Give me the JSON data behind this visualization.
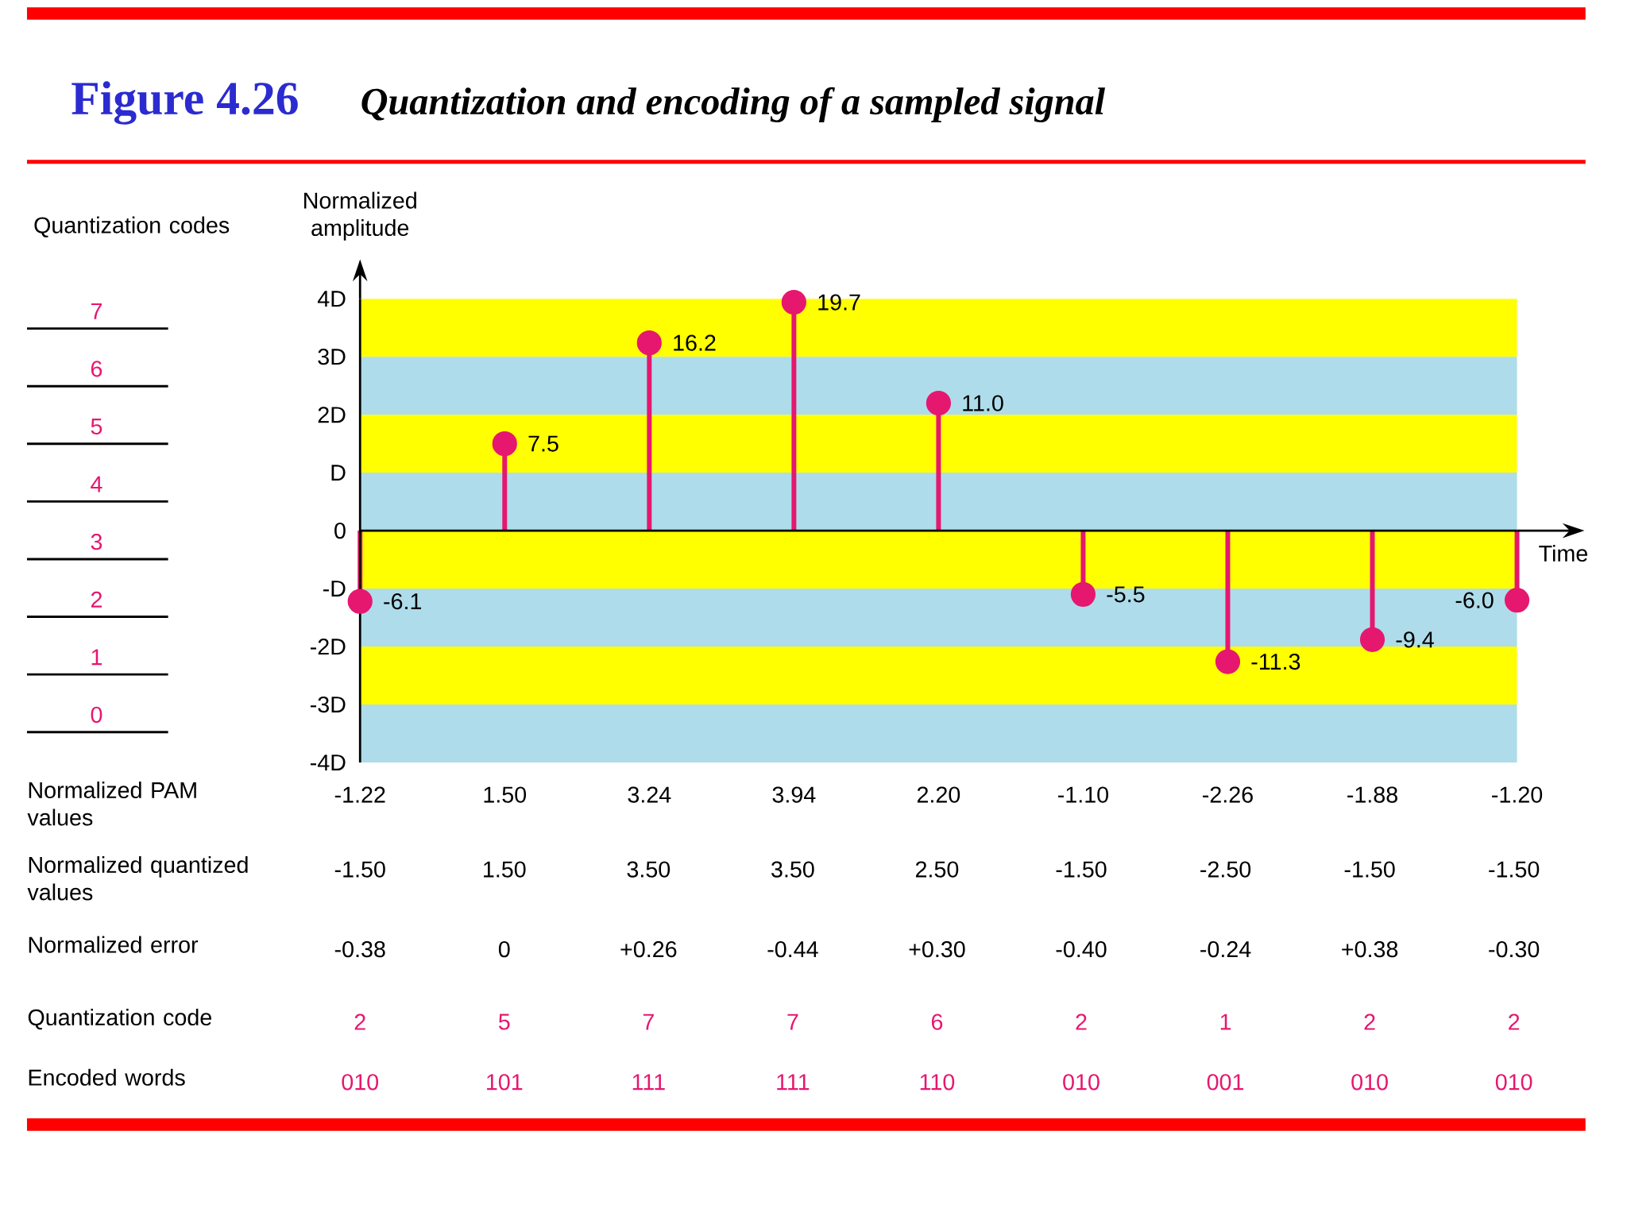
{
  "chart_data": {
    "type": "lollipop",
    "title": "Figure 4.26",
    "subtitle": "Quantization and encoding of a sampled signal",
    "xlabel": "Time",
    "ylabel": "Normalized amplitude",
    "y2label": "Quantization codes",
    "categories": [
      "-1.22",
      "1.50",
      "3.24",
      "3.94",
      "2.20",
      "-1.10",
      "-2.26",
      "-1.88",
      "-1.20"
    ],
    "values": [
      -1.22,
      1.5,
      3.24,
      3.94,
      2.2,
      -1.1,
      -2.26,
      -1.88,
      -1.2
    ],
    "color": "#e6176f",
    "marker": "circle",
    "ylim": [
      -4,
      4
    ],
    "yticks": [
      {
        "value": 4,
        "label": "4D"
      },
      {
        "value": 3,
        "label": "3D"
      },
      {
        "value": 2,
        "label": "2D"
      },
      {
        "value": 1,
        "label": "D"
      },
      0,
      {
        "value": -1,
        "label": "-D"
      },
      {
        "value": -2,
        "label": "-2D"
      },
      {
        "value": -3,
        "label": "-3D"
      },
      {
        "value": -4,
        "label": "-4D"
      }
    ],
    "y2lim": [
      0,
      7
    ],
    "y2ticks": [
      0,
      1,
      2,
      3,
      4,
      5,
      6,
      7
    ],
    "bands": [
      {
        "axis": "y",
        "from": 3,
        "to": 4,
        "color": "#ffff00"
      },
      {
        "axis": "y",
        "from": 2,
        "to": 3,
        "color": "#aedcea"
      },
      {
        "axis": "y",
        "from": 1,
        "to": 2,
        "color": "#ffff00"
      },
      {
        "axis": "y",
        "from": 0,
        "to": 1,
        "color": "#aedcea"
      },
      {
        "axis": "y",
        "from": -1,
        "to": 0,
        "color": "#ffff00"
      },
      {
        "axis": "y",
        "from": -2,
        "to": -1,
        "color": "#aedcea"
      },
      {
        "axis": "y",
        "from": -3,
        "to": -2,
        "color": "#ffff00"
      },
      {
        "axis": "y",
        "from": -4,
        "to": -3,
        "color": "#aedcea"
      }
    ],
    "annotations": [
      {
        "text": "-6.1",
        "x": "-1.22",
        "y": -1.22
      },
      {
        "text": "7.5",
        "x": "1.50",
        "y": 1.5
      },
      {
        "text": "16.2",
        "x": "3.24",
        "y": 3.24
      },
      {
        "text": "19.7",
        "x": "3.94",
        "y": 3.94
      },
      {
        "text": "11.0",
        "x": "2.20",
        "y": 2.2
      },
      {
        "text": "-5.5",
        "x": "-1.10",
        "y": -1.1
      },
      {
        "text": "-11.3",
        "x": "-2.26",
        "y": -2.26
      },
      {
        "text": "-9.4",
        "x": "-1.88",
        "y": -1.88
      },
      {
        "text": "-6.0",
        "x": "-1.20",
        "y": -1.2
      },
      "Normalized PAM values",
      "Normalized quantized values",
      "-1.50",
      "1.50",
      "3.50",
      "3.50",
      "2.50",
      "-1.50",
      "-2.50",
      "-1.50",
      "-1.50",
      "Normalized error",
      "-0.38",
      "0",
      "+0.26",
      "-0.44",
      "+0.30",
      "-0.40",
      "-0.24",
      "+0.38",
      "-0.30",
      "Quantization code",
      "2",
      "5",
      "7",
      "7",
      "6",
      "2",
      "1",
      "2",
      "2",
      "Encoded words",
      "010",
      "101",
      "111",
      "111",
      "110",
      "010",
      "001",
      "010",
      "010"
    ]
  }
}
